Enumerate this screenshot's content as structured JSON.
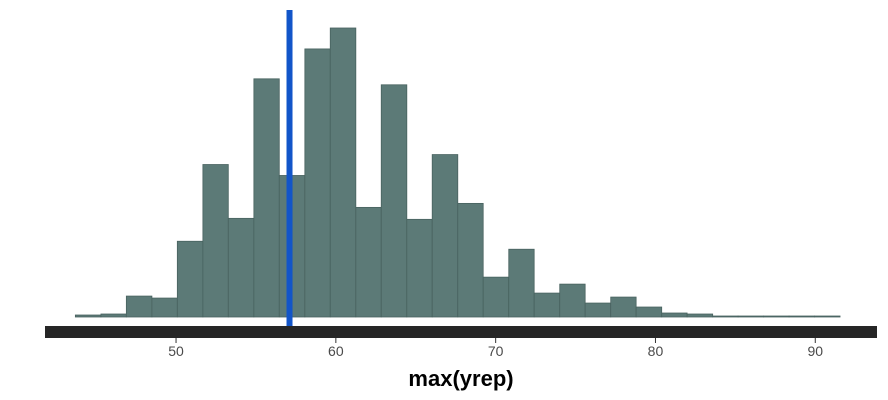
{
  "chart_data": {
    "type": "histogram",
    "title": "",
    "xlabel": "max(yrep)",
    "ylabel": "",
    "xlim": [
      41.8,
      93.8
    ],
    "ylim": [
      0,
      293
    ],
    "x_ticks": [
      50,
      60,
      70,
      80,
      90
    ],
    "y_axis_shown": false,
    "grid": false,
    "legend": "none",
    "bin_width": 1.595,
    "bins": [
      {
        "start": 43.7,
        "end": 45.3,
        "count": 2
      },
      {
        "start": 45.3,
        "end": 46.89,
        "count": 3
      },
      {
        "start": 46.89,
        "end": 48.49,
        "count": 21
      },
      {
        "start": 48.49,
        "end": 50.08,
        "count": 19
      },
      {
        "start": 50.08,
        "end": 51.68,
        "count": 76
      },
      {
        "start": 51.68,
        "end": 53.27,
        "count": 153
      },
      {
        "start": 53.27,
        "end": 54.87,
        "count": 99
      },
      {
        "start": 54.87,
        "end": 56.46,
        "count": 239
      },
      {
        "start": 56.46,
        "end": 58.06,
        "count": 142
      },
      {
        "start": 58.06,
        "end": 59.65,
        "count": 269
      },
      {
        "start": 59.65,
        "end": 61.25,
        "count": 290
      },
      {
        "start": 61.25,
        "end": 62.84,
        "count": 110
      },
      {
        "start": 62.84,
        "end": 64.44,
        "count": 233
      },
      {
        "start": 64.44,
        "end": 66.03,
        "count": 98
      },
      {
        "start": 66.03,
        "end": 67.63,
        "count": 163
      },
      {
        "start": 67.63,
        "end": 69.22,
        "count": 114
      },
      {
        "start": 69.22,
        "end": 70.82,
        "count": 40
      },
      {
        "start": 70.82,
        "end": 72.41,
        "count": 68
      },
      {
        "start": 72.41,
        "end": 74.01,
        "count": 24
      },
      {
        "start": 74.01,
        "end": 75.6,
        "count": 33
      },
      {
        "start": 75.6,
        "end": 77.2,
        "count": 14
      },
      {
        "start": 77.2,
        "end": 78.79,
        "count": 20
      },
      {
        "start": 78.79,
        "end": 80.39,
        "count": 10
      },
      {
        "start": 80.39,
        "end": 81.98,
        "count": 4
      },
      {
        "start": 81.98,
        "end": 83.58,
        "count": 3
      },
      {
        "start": 83.58,
        "end": 85.17,
        "count": 1
      },
      {
        "start": 85.17,
        "end": 86.77,
        "count": 1
      },
      {
        "start": 86.77,
        "end": 88.36,
        "count": 1
      },
      {
        "start": 88.36,
        "end": 89.96,
        "count": 1
      },
      {
        "start": 89.96,
        "end": 91.55,
        "count": 1
      }
    ],
    "reference_line": {
      "x": 57.1,
      "color": "#1255c9"
    },
    "colors": {
      "bar_fill": "#5c7a77",
      "bar_stroke": "#48625f",
      "axis_line": "#262626"
    }
  }
}
